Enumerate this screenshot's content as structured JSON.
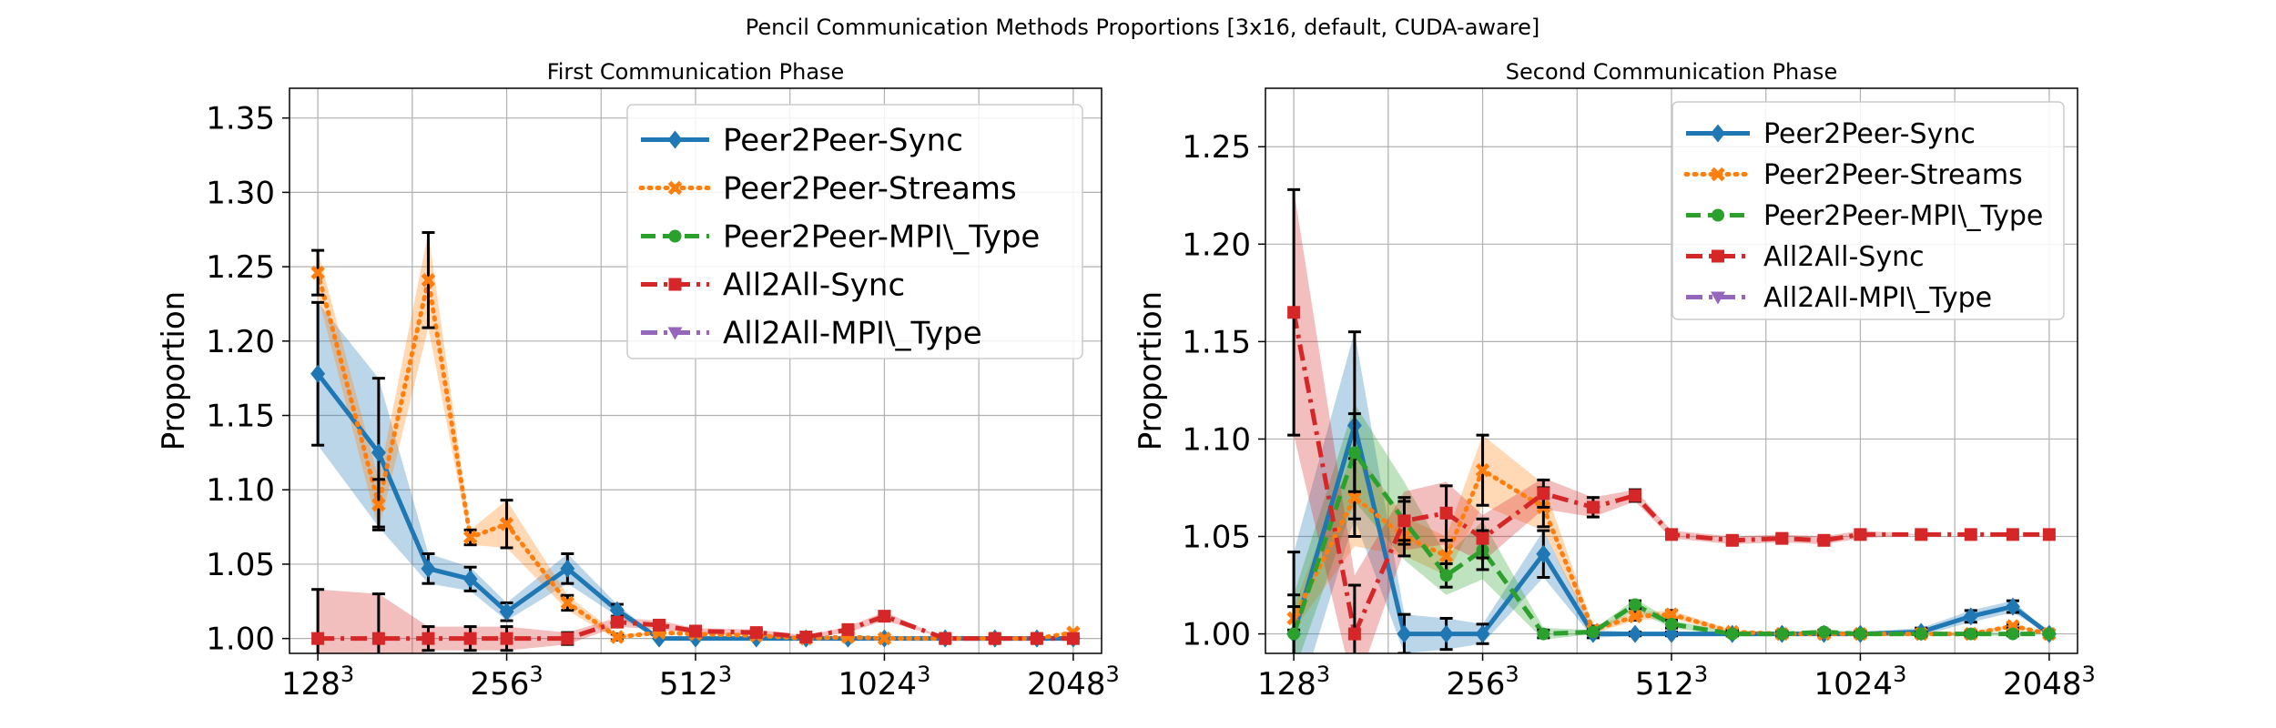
{
  "figure_title": "Pencil Communication Methods Proportions [3x16, default, CUDA-aware]",
  "chart_data": [
    {
      "type": "line",
      "title": "First Communication Phase",
      "xlabel": "",
      "ylabel": "Proportion",
      "x_scale": "log2 of N in N^3",
      "x": [
        128,
        160,
        192,
        224,
        256,
        320,
        384,
        448,
        512,
        640,
        768,
        896,
        1024,
        1280,
        1536,
        1792,
        2048
      ],
      "xlim": [
        6.85,
        11.15
      ],
      "ylim": [
        0.99,
        1.37
      ],
      "xticks": [
        {
          "value": 128,
          "base": "128",
          "exp": "3"
        },
        {
          "value": 256,
          "base": "256",
          "exp": "3"
        },
        {
          "value": 512,
          "base": "512",
          "exp": "3"
        },
        {
          "value": 1024,
          "base": "1024",
          "exp": "3"
        },
        {
          "value": 2048,
          "base": "2048",
          "exp": "3"
        }
      ],
      "yticks": [
        1.0,
        1.05,
        1.1,
        1.15,
        1.2,
        1.25,
        1.3,
        1.35
      ],
      "ytick_labels": [
        "1.00",
        "1.05",
        "1.10",
        "1.15",
        "1.20",
        "1.25",
        "1.30",
        "1.35"
      ],
      "grid": true,
      "legend_position": "top-right",
      "series": [
        {
          "name": "Peer2Peer-Sync",
          "color": "#1f77b4",
          "dash": "solid",
          "marker": "diamond",
          "x": [
            128,
            160,
            192,
            224,
            256,
            320,
            384,
            448,
            512,
            640,
            768,
            896,
            1024,
            1280,
            1536,
            1792,
            2048
          ],
          "values": [
            1.178,
            1.125,
            1.047,
            1.04,
            1.018,
            1.047,
            1.019,
            1.0,
            1.0,
            1.0,
            1.0,
            1.0,
            1.0,
            1.0,
            1.0,
            1.0,
            1.0
          ],
          "err": [
            0.048,
            0.05,
            0.01,
            0.008,
            0.006,
            0.01,
            0.004,
            0,
            0,
            0,
            0,
            0,
            0,
            0,
            0,
            0,
            0
          ],
          "band": [
            0.048,
            0.05,
            0.01,
            0.008,
            0.006,
            0.01,
            0.004,
            0,
            0,
            0,
            0,
            0,
            0,
            0,
            0,
            0,
            0
          ]
        },
        {
          "name": "Peer2Peer-Streams",
          "color": "#ff7f0e",
          "dash": "dotted",
          "marker": "x",
          "x": [
            128,
            160,
            192,
            224,
            256,
            320,
            384,
            448,
            512,
            640,
            768,
            896,
            1024,
            1280,
            1536,
            1792,
            2048
          ],
          "values": [
            1.246,
            1.09,
            1.241,
            1.068,
            1.077,
            1.024,
            1.001,
            1.004,
            1.003,
            1.002,
            1.0,
            1.001,
            1.0,
            1.0,
            1.0,
            1.0,
            1.004
          ],
          "err": [
            0.015,
            0.017,
            0.032,
            0.005,
            0.016,
            0.005,
            0.002,
            0,
            0,
            0,
            0,
            0,
            0,
            0,
            0,
            0,
            0
          ],
          "band": [
            0.015,
            0.017,
            0.032,
            0.005,
            0.016,
            0.005,
            0.002,
            0,
            0,
            0,
            0,
            0,
            0,
            0,
            0,
            0,
            0
          ]
        },
        {
          "name": "Peer2Peer-MPI\\_Type",
          "color": "#2ca02c",
          "dash": "dashed",
          "marker": "circle",
          "x": [],
          "values": [],
          "err": [],
          "band": []
        },
        {
          "name": "All2All-Sync",
          "color": "#d62728",
          "dash": "dashdot",
          "marker": "square",
          "x": [
            128,
            160,
            192,
            224,
            256,
            320,
            384,
            448,
            512,
            640,
            768,
            896,
            1024,
            1280,
            1536,
            1792,
            2048
          ],
          "values": [
            1.0,
            1.0,
            1.0,
            1.0,
            1.0,
            1.0,
            1.011,
            1.009,
            1.005,
            1.004,
            1.001,
            1.006,
            1.015,
            1.0,
            1.0,
            1.0,
            1.0
          ],
          "err": [
            0.033,
            0.03,
            0.008,
            0.008,
            0.008,
            0.004,
            0.003,
            0.003,
            0.002,
            0.002,
            0.001,
            0.002,
            0.003,
            0,
            0,
            0,
            0
          ],
          "band": [
            0.033,
            0.03,
            0.008,
            0.008,
            0.008,
            0.004,
            0.003,
            0.003,
            0.002,
            0.002,
            0.001,
            0.002,
            0.003,
            0,
            0,
            0,
            0
          ]
        },
        {
          "name": "All2All-MPI\\_Type",
          "color": "#9467bd",
          "dash": "dashdot",
          "marker": "triangle",
          "x": [],
          "values": [],
          "err": [],
          "band": []
        }
      ]
    },
    {
      "type": "line",
      "title": "Second Communication Phase",
      "xlabel": "",
      "ylabel": "Proportion",
      "x_scale": "log2 of N in N^3",
      "x": [
        128,
        160,
        192,
        224,
        256,
        320,
        384,
        448,
        512,
        640,
        768,
        896,
        1024,
        1280,
        1536,
        1792,
        2048
      ],
      "xlim": [
        6.85,
        11.15
      ],
      "ylim": [
        0.99,
        1.28
      ],
      "xticks": [
        {
          "value": 128,
          "base": "128",
          "exp": "3"
        },
        {
          "value": 256,
          "base": "256",
          "exp": "3"
        },
        {
          "value": 512,
          "base": "512",
          "exp": "3"
        },
        {
          "value": 1024,
          "base": "1024",
          "exp": "3"
        },
        {
          "value": 2048,
          "base": "2048",
          "exp": "3"
        }
      ],
      "yticks": [
        1.0,
        1.05,
        1.1,
        1.15,
        1.2,
        1.25
      ],
      "ytick_labels": [
        "1.00",
        "1.05",
        "1.10",
        "1.15",
        "1.20",
        "1.25"
      ],
      "grid": true,
      "legend_position": "top-right",
      "series": [
        {
          "name": "Peer2Peer-Sync",
          "color": "#1f77b4",
          "dash": "solid",
          "marker": "diamond",
          "x": [
            128,
            160,
            192,
            224,
            256,
            320,
            384,
            448,
            512,
            640,
            768,
            896,
            1024,
            1280,
            1536,
            1792,
            2048
          ],
          "values": [
            1.0,
            1.107,
            1.0,
            1.0,
            1.0,
            1.041,
            1.0,
            1.0,
            1.0,
            1.0,
            1.0,
            1.0,
            1.0,
            1.001,
            1.009,
            1.014,
            1.0
          ],
          "err": [
            0.042,
            0.048,
            0.01,
            0.008,
            0.005,
            0.012,
            0.002,
            0.001,
            0.001,
            0.001,
            0.001,
            0.001,
            0.001,
            0.002,
            0.003,
            0.003,
            0
          ],
          "band": [
            0.042,
            0.048,
            0.01,
            0.008,
            0.005,
            0.012,
            0.002,
            0.001,
            0.001,
            0.001,
            0.001,
            0.001,
            0.001,
            0.002,
            0.003,
            0.003,
            0
          ]
        },
        {
          "name": "Peer2Peer-Streams",
          "color": "#ff7f0e",
          "dash": "dotted",
          "marker": "x",
          "x": [
            128,
            160,
            192,
            224,
            256,
            320,
            384,
            448,
            512,
            640,
            768,
            896,
            1024,
            1280,
            1536,
            1792,
            2048
          ],
          "values": [
            1.008,
            1.07,
            1.05,
            1.04,
            1.084,
            1.065,
            1.002,
            1.009,
            1.01,
            1.001,
            1.0,
            1.0,
            1.0,
            1.0,
            1.0,
            1.004,
            1.0
          ],
          "err": [
            0.006,
            0.02,
            0.01,
            0.008,
            0.018,
            0.01,
            0.002,
            0.002,
            0.002,
            0.001,
            0.001,
            0.001,
            0.001,
            0.001,
            0.001,
            0.001,
            0
          ],
          "band": [
            0.006,
            0.025,
            0.01,
            0.01,
            0.018,
            0.012,
            0.002,
            0.002,
            0.002,
            0.001,
            0.001,
            0.001,
            0.001,
            0.001,
            0.001,
            0.001,
            0
          ]
        },
        {
          "name": "Peer2Peer-MPI\\_Type",
          "color": "#2ca02c",
          "dash": "dashed",
          "marker": "circle",
          "x": [
            128,
            160,
            192,
            224,
            256,
            320,
            384,
            448,
            512,
            640,
            768,
            896,
            1024,
            1280,
            1536,
            1792,
            2048
          ],
          "values": [
            1.0,
            1.093,
            1.058,
            1.03,
            1.043,
            1.0,
            1.001,
            1.015,
            1.005,
            1.0,
            1.0,
            1.001,
            1.0,
            1.0,
            1.0,
            1.0,
            1.0
          ],
          "err": [
            0.02,
            0.02,
            0.01,
            0.006,
            0.01,
            0.002,
            0.001,
            0.002,
            0.002,
            0.001,
            0.001,
            0.001,
            0.001,
            0.001,
            0.001,
            0.001,
            0
          ],
          "band": [
            0.02,
            0.025,
            0.02,
            0.01,
            0.015,
            0.003,
            0.001,
            0.003,
            0.002,
            0.001,
            0.001,
            0.001,
            0.001,
            0.001,
            0.001,
            0.001,
            0
          ]
        },
        {
          "name": "All2All-Sync",
          "color": "#d62728",
          "dash": "dashdot",
          "marker": "square",
          "x": [
            128,
            160,
            192,
            224,
            256,
            320,
            384,
            448,
            512,
            640,
            768,
            896,
            1024,
            1280,
            1536,
            1792,
            2048
          ],
          "values": [
            1.165,
            1.0,
            1.058,
            1.062,
            1.049,
            1.072,
            1.065,
            1.071,
            1.051,
            1.048,
            1.049,
            1.048,
            1.051,
            1.051,
            1.051,
            1.051,
            1.051
          ],
          "err": [
            0.063,
            0.025,
            0.012,
            0.014,
            0.01,
            0.007,
            0.005,
            0.003,
            0.002,
            0.002,
            0.002,
            0.002,
            0.002,
            0,
            0,
            0,
            0
          ],
          "band": [
            0.063,
            0.03,
            0.015,
            0.016,
            0.012,
            0.008,
            0.005,
            0.003,
            0.002,
            0.002,
            0.002,
            0.002,
            0.002,
            0,
            0,
            0,
            0
          ]
        },
        {
          "name": "All2All-MPI\\_Type",
          "color": "#9467bd",
          "dash": "dashdot",
          "marker": "triangle",
          "x": [],
          "values": [],
          "err": [],
          "band": []
        }
      ]
    }
  ]
}
